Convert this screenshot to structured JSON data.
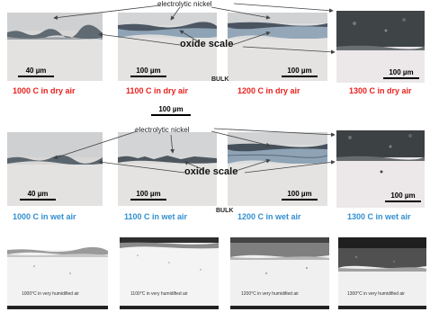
{
  "row1": {
    "label_top": "electrolytic nickel",
    "label_oxide": "oxide scale",
    "bulk": "BULK",
    "scalebars": [
      "40 µm",
      "100 µm",
      "100 µm",
      "100 µm"
    ],
    "captions": [
      "1000 C in dry air",
      "1100 C in dry air",
      "1200 C in dry air",
      "1300 C in dry air"
    ],
    "caption_color": "#e8211d"
  },
  "middle_scalebar": "100 µm",
  "row2": {
    "label_top": "electrolytic nickel",
    "label_oxide": "oxide scale",
    "bulk": "BULK",
    "scalebars": [
      "40 µm",
      "100 µm",
      "100 µm",
      "100 µm"
    ],
    "captions": [
      "1000 C in wet air",
      "1100 C in wet air",
      "1200 C in wet air",
      "1300 C in wet air"
    ],
    "caption_color": "#2f8fd0"
  },
  "row3": {
    "captions": [
      "1000°C in very humidified air",
      "1100°C in very humidified air",
      "1200°C in very humidified air",
      "1300°C in very humidified air"
    ]
  }
}
